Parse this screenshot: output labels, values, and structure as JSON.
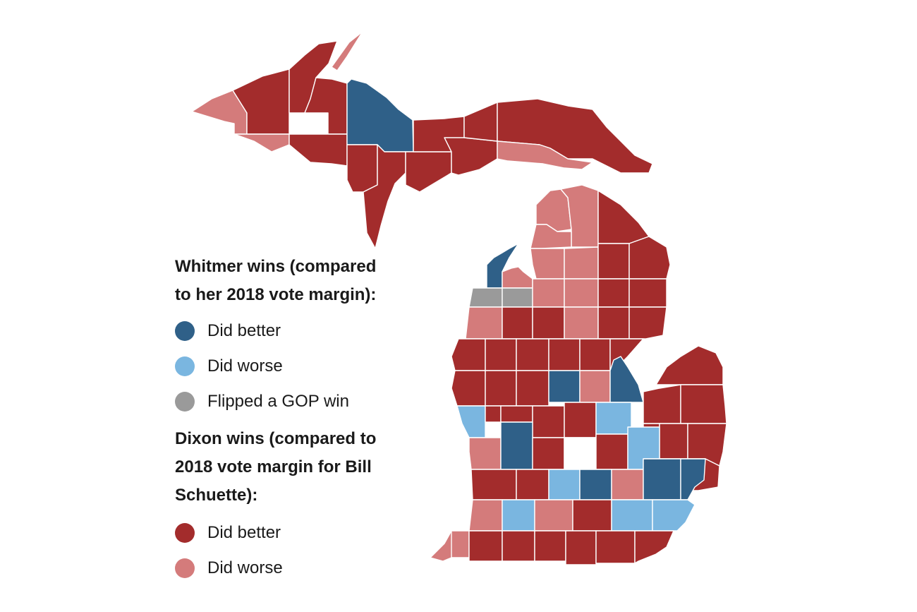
{
  "colors": {
    "whitmer_better": "#2f6088",
    "whitmer_worse": "#7ab6e0",
    "flipped": "#9a9a9a",
    "dixon_better": "#a32c2c",
    "dixon_worse": "#d47b7b",
    "no_data": "#ffffff"
  },
  "legend": {
    "whitmer_heading": [
      "Whitmer wins (compared",
      "to her 2018 vote margin):"
    ],
    "whitmer_items": [
      {
        "label": "Did better",
        "category": "whitmer_better"
      },
      {
        "label": "Did worse",
        "category": "whitmer_worse"
      },
      {
        "label": "Flipped a GOP win",
        "category": "flipped"
      }
    ],
    "dixon_heading": [
      "Dixon wins (compared to",
      "2018 vote margin for Bill",
      "Schuette):"
    ],
    "dixon_items": [
      {
        "label": "Did better",
        "category": "dixon_better"
      },
      {
        "label": "Did worse",
        "category": "dixon_worse"
      }
    ]
  }
}
